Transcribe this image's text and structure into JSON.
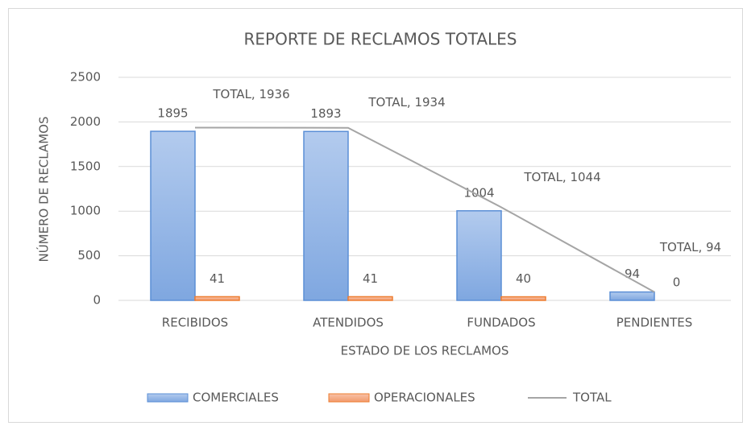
{
  "chart_data": {
    "type": "bar",
    "title": "REPORTE DE RECLAMOS  TOTALES",
    "x_label": "ESTADO DE LOS RECLAMOS",
    "y_label": "NÚMERO DE RECLAMOS",
    "categories": [
      "RECIBIDOS",
      "ATENDIDOS",
      "FUNDADOS",
      "PENDIENTES"
    ],
    "series": [
      {
        "name": "COMERCIALES",
        "type": "bar",
        "color": "#9dbde8",
        "values": [
          1895,
          1893,
          1004,
          94
        ]
      },
      {
        "name": "OPERACIONALES",
        "type": "bar",
        "color": "#f4b090",
        "values": [
          41,
          41,
          40,
          0
        ]
      },
      {
        "name": "TOTAL",
        "type": "line",
        "color": "#a5a5a5",
        "values": [
          1936,
          1934,
          1044,
          94
        ],
        "value_labels": [
          "TOTAL, 1936",
          "TOTAL, 1934",
          "TOTAL, 1044",
          "TOTAL, 94"
        ]
      }
    ],
    "ylim": [
      0,
      2500
    ],
    "yticks": [
      0,
      500,
      1000,
      1500,
      2000,
      2500
    ],
    "grid": true,
    "legend": "bottom"
  }
}
